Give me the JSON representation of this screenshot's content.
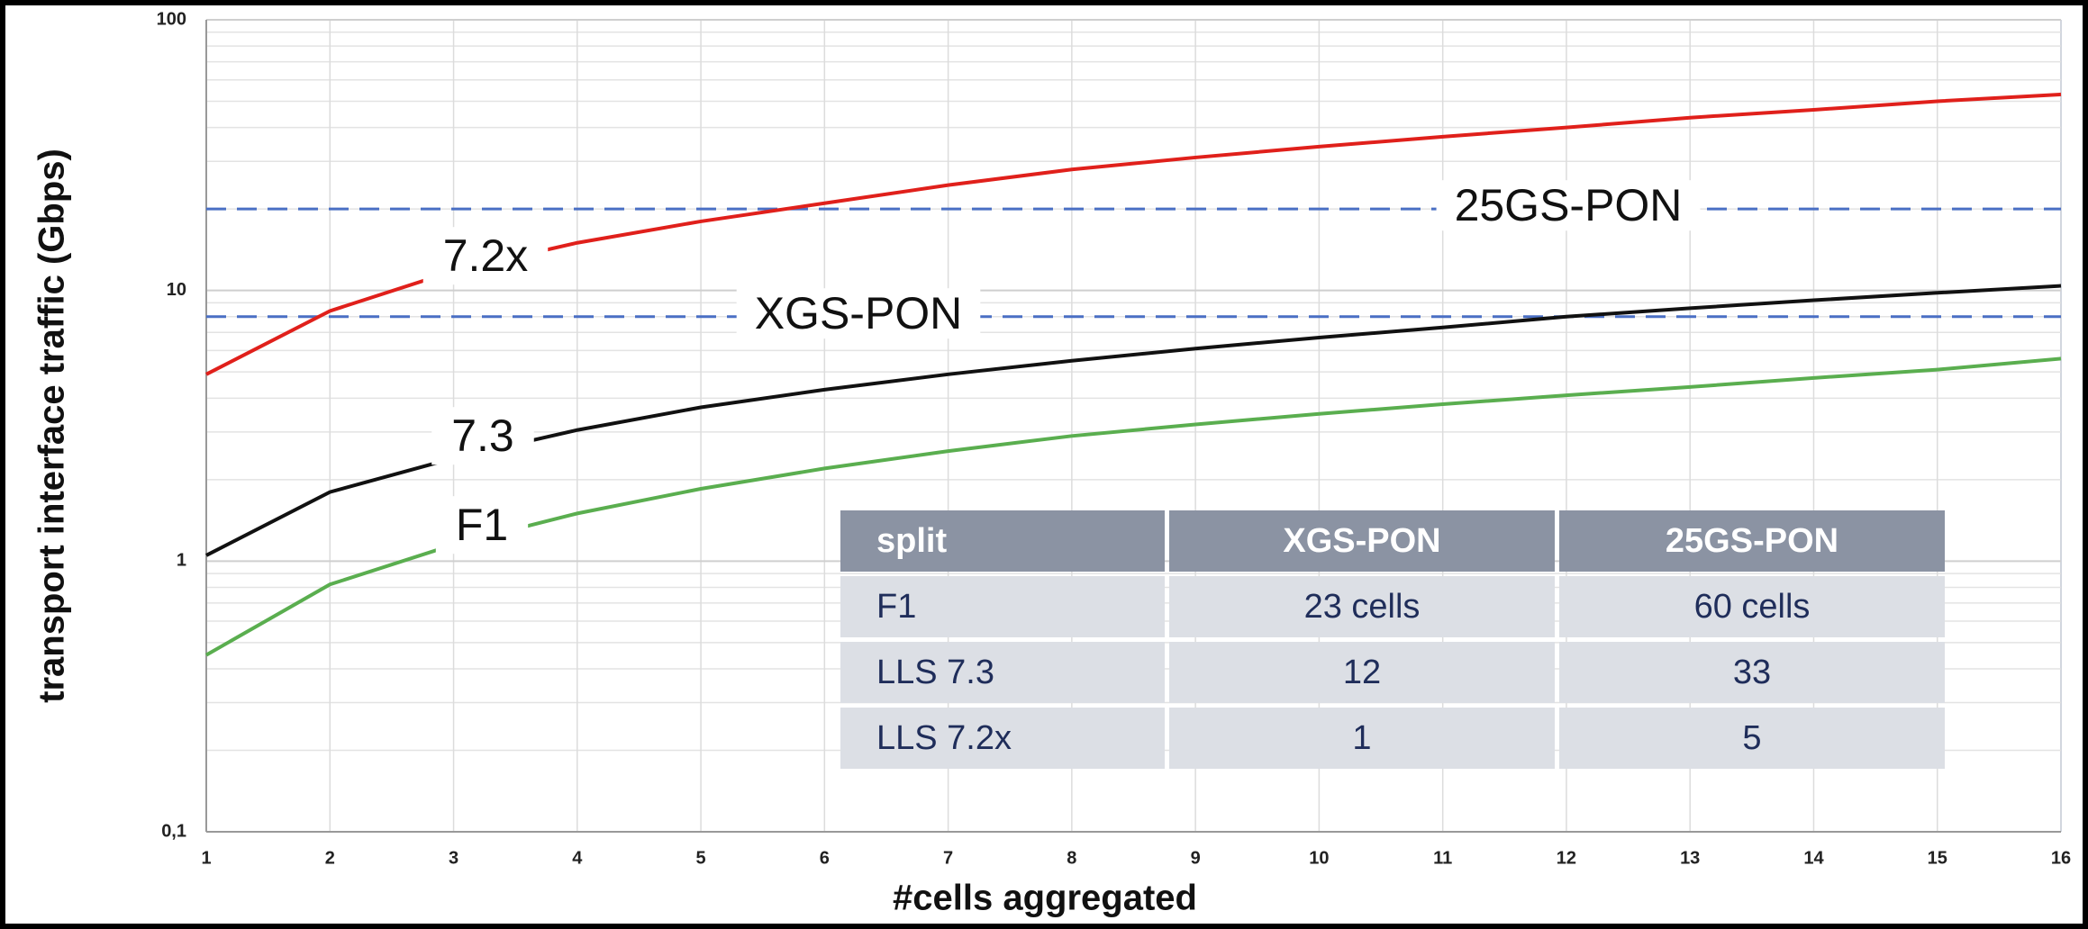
{
  "chart_data": {
    "type": "line",
    "x_label": "#cells aggregated",
    "y_label": "transport interface traffic  (Gbps)",
    "log_y": true,
    "grid": true,
    "xlim": [
      1,
      16
    ],
    "xticks": [
      1,
      2,
      3,
      4,
      5,
      6,
      7,
      8,
      9,
      10,
      11,
      12,
      13,
      14,
      15,
      16
    ],
    "ylim": [
      0.1,
      100
    ],
    "yticks": [
      {
        "value": 0.1,
        "label": "0,1"
      },
      1,
      10,
      100
    ],
    "minor_yticks": [
      0.2,
      0.3,
      0.4,
      0.5,
      0.6,
      0.7,
      0.8,
      0.9,
      2,
      3,
      4,
      5,
      6,
      7,
      8,
      9,
      20,
      30,
      40,
      50,
      60,
      70,
      80,
      90
    ],
    "x": [
      1,
      2,
      3,
      4,
      5,
      6,
      7,
      8,
      9,
      10,
      11,
      12,
      13,
      14,
      15,
      16
    ],
    "series": [
      {
        "name": "7.2x",
        "color": "#e0201b",
        "values": [
          4.9,
          8.4,
          11.8,
          15,
          18,
          21,
          24.5,
          28,
          31,
          34,
          37,
          40,
          43.5,
          46.5,
          50,
          53
        ]
      },
      {
        "name": "7.3",
        "color": "#111111",
        "values": [
          1.05,
          1.8,
          2.4,
          3.05,
          3.7,
          4.3,
          4.9,
          5.5,
          6.1,
          6.7,
          7.3,
          8.0,
          8.6,
          9.2,
          9.8,
          10.4
        ]
      },
      {
        "name": "F1",
        "color": "#5aae4f",
        "values": [
          0.45,
          0.82,
          1.15,
          1.5,
          1.85,
          2.2,
          2.55,
          2.9,
          3.2,
          3.5,
          3.8,
          4.1,
          4.4,
          4.75,
          5.1,
          5.6
        ]
      }
    ],
    "reference_lines": [
      {
        "label": "25GS-PON",
        "value": 20,
        "color": "#4a6fc4"
      },
      {
        "label": "XGS-PON",
        "value": 8,
        "color": "#4a6fc4"
      }
    ],
    "table": {
      "header": [
        "split",
        "XGS-PON",
        "25GS-PON"
      ],
      "rows": [
        [
          "F1",
          "23 cells",
          "60 cells"
        ],
        [
          "LLS 7.3",
          "12",
          "33"
        ],
        [
          "LLS 7.2x",
          "1",
          "5"
        ]
      ]
    }
  }
}
